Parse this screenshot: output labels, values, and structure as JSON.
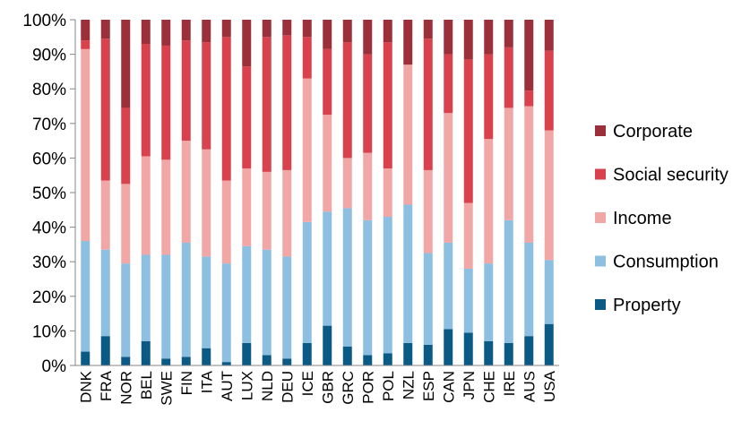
{
  "chart_data": {
    "type": "bar",
    "stacked": true,
    "percent": true,
    "categories": [
      "DNK",
      "FRA",
      "NOR",
      "BEL",
      "SWE",
      "FIN",
      "ITA",
      "AUT",
      "LUX",
      "NLD",
      "DEU",
      "ICE",
      "GBR",
      "GRC",
      "POR",
      "POL",
      "NZL",
      "ESP",
      "CAN",
      "JPN",
      "CHE",
      "IRE",
      "AUS",
      "USA"
    ],
    "series": [
      {
        "name": "Property",
        "color": "#0b5a86",
        "values": [
          4,
          8.5,
          2.5,
          7,
          2,
          2.5,
          5,
          1,
          6.5,
          3,
          2,
          6.5,
          11.5,
          5.5,
          3,
          3.5,
          6.5,
          6,
          10.5,
          9.5,
          7,
          6.5,
          8.5,
          12
        ]
      },
      {
        "name": "Consumption",
        "color": "#8dbfe0",
        "values": [
          32,
          25,
          27,
          25,
          30,
          33,
          26.5,
          28.5,
          28,
          30.5,
          29.5,
          35,
          33,
          40,
          39,
          39.5,
          40,
          26.5,
          25,
          18.5,
          22.5,
          35.5,
          27,
          18.5
        ]
      },
      {
        "name": "Income",
        "color": "#f2a7a7",
        "values": [
          55.5,
          20,
          23,
          28.5,
          27.5,
          29.5,
          31,
          24,
          22.5,
          22.5,
          25,
          41.5,
          28,
          14.5,
          19.5,
          14,
          40.5,
          24,
          37.5,
          19,
          36,
          32.5,
          39.5,
          37.5
        ]
      },
      {
        "name": "Social security",
        "color": "#d9414c",
        "values": [
          2.5,
          41,
          22,
          32.5,
          33,
          29,
          31,
          41.5,
          29.5,
          39,
          39,
          12,
          19,
          33.5,
          28.5,
          36.5,
          0,
          38,
          17,
          41.5,
          24.5,
          17.5,
          4.5,
          23
        ]
      },
      {
        "name": "Corporate",
        "color": "#9b2f3a",
        "values": [
          6,
          5.5,
          25.5,
          7,
          7.5,
          6,
          6.5,
          5,
          13.5,
          5,
          4.5,
          5,
          8.5,
          6.5,
          10,
          6.5,
          13,
          5.5,
          10,
          11.5,
          10,
          8,
          20.5,
          9
        ]
      }
    ],
    "yticks": [
      "0%",
      "10%",
      "20%",
      "30%",
      "40%",
      "50%",
      "60%",
      "70%",
      "80%",
      "90%",
      "100%"
    ],
    "ylim": [
      0,
      100
    ],
    "xlabel": "",
    "ylabel": "",
    "title": "",
    "legend_position": "right",
    "grid": false
  }
}
